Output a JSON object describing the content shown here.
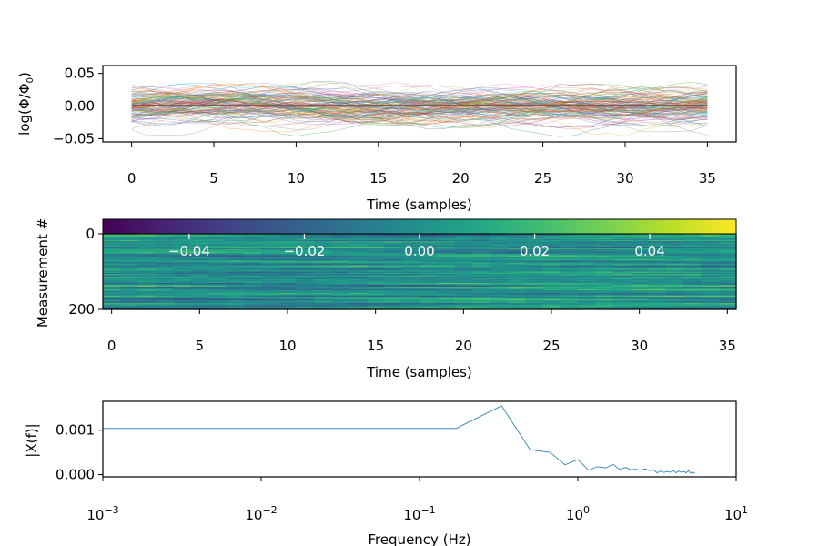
{
  "chart_data": [
    {
      "type": "line",
      "xlabel": "Time (samples)",
      "ylabel": "log(Φ/Φ0)",
      "ylabel_main": "log(Φ/Φ",
      "ylabel_sub": "0",
      "ylabel_close": ")",
      "xlim": [
        -1.75,
        36.75
      ],
      "ylim": [
        -0.055,
        0.062
      ],
      "xticks": [
        0,
        5,
        10,
        15,
        20,
        25,
        30,
        35
      ],
      "xtick_labels": [
        "0",
        "5",
        "10",
        "15",
        "20",
        "25",
        "30",
        "35"
      ],
      "yticks": [
        -0.05,
        0.0,
        0.05
      ],
      "ytick_labels": [
        "−0.05",
        "0.00",
        "0.05"
      ],
      "series_count": 200,
      "x": [
        0,
        35
      ],
      "amplitude_range": [
        -0.05,
        0.05
      ],
      "mean_line_color": "#8c564b"
    },
    {
      "type": "heatmap",
      "xlabel": "Time (samples)",
      "ylabel": "Measurement #",
      "xlim": [
        -0.5,
        35.5
      ],
      "ylim": [
        200,
        0
      ],
      "xticks": [
        0,
        5,
        10,
        15,
        20,
        25,
        30,
        35
      ],
      "xtick_labels": [
        "0",
        "5",
        "10",
        "15",
        "20",
        "25",
        "30",
        "35"
      ],
      "yticks": [
        0,
        200
      ],
      "ytick_labels": [
        "0",
        "200"
      ],
      "colormap": "viridis",
      "colorbar_range": [
        -0.055,
        0.055
      ],
      "colorbar_ticks": [
        -0.04,
        -0.02,
        0.0,
        0.02,
        0.04
      ],
      "colorbar_tick_labels": [
        "−0.04",
        "−0.02",
        "0.00",
        "0.02",
        "0.04"
      ],
      "rows": 200,
      "cols": 36
    },
    {
      "type": "line",
      "xlabel": "Frequency (Hz)",
      "ylabel": "|X(f)|",
      "xscale": "log",
      "xlim": [
        0.001,
        10
      ],
      "xticks": [
        0.001,
        0.01,
        0.1,
        1,
        10
      ],
      "xtick_bases": [
        "10",
        "10",
        "10",
        "10",
        "10"
      ],
      "xtick_exps": [
        "−3",
        "−2",
        "−1",
        "0",
        "1"
      ],
      "ylim": [
        -5e-05,
        0.00165
      ],
      "yticks": [
        0.0,
        0.001
      ],
      "ytick_labels": [
        "0.000",
        "0.001"
      ],
      "x": [
        0.001,
        0.17,
        0.33,
        0.5,
        0.67,
        0.83,
        1.0,
        1.17,
        1.33,
        1.5,
        1.67,
        1.83,
        2.0,
        2.17,
        2.33,
        2.5,
        2.67,
        2.83,
        3.0,
        3.17,
        3.33,
        3.5,
        3.67,
        3.83,
        4.0,
        4.17,
        4.33,
        4.5,
        4.67,
        4.83,
        5.0,
        5.17,
        5.33,
        5.5
      ],
      "y": [
        0.00104,
        0.00104,
        0.00155,
        0.00056,
        0.0005,
        0.00022,
        0.00034,
        0.0001,
        0.00018,
        0.00015,
        0.00023,
        0.00012,
        0.00016,
        0.00011,
        0.00012,
        0.0001,
        0.00013,
        9e-05,
        0.00011,
        4e-05,
        8e-05,
        5e-05,
        7e-05,
        5e-05,
        9e-05,
        4e-05,
        8e-05,
        5e-05,
        7e-05,
        4e-05,
        9e-05,
        3e-05,
        6e-05,
        3e-05
      ],
      "color": "#1f77b4"
    }
  ]
}
